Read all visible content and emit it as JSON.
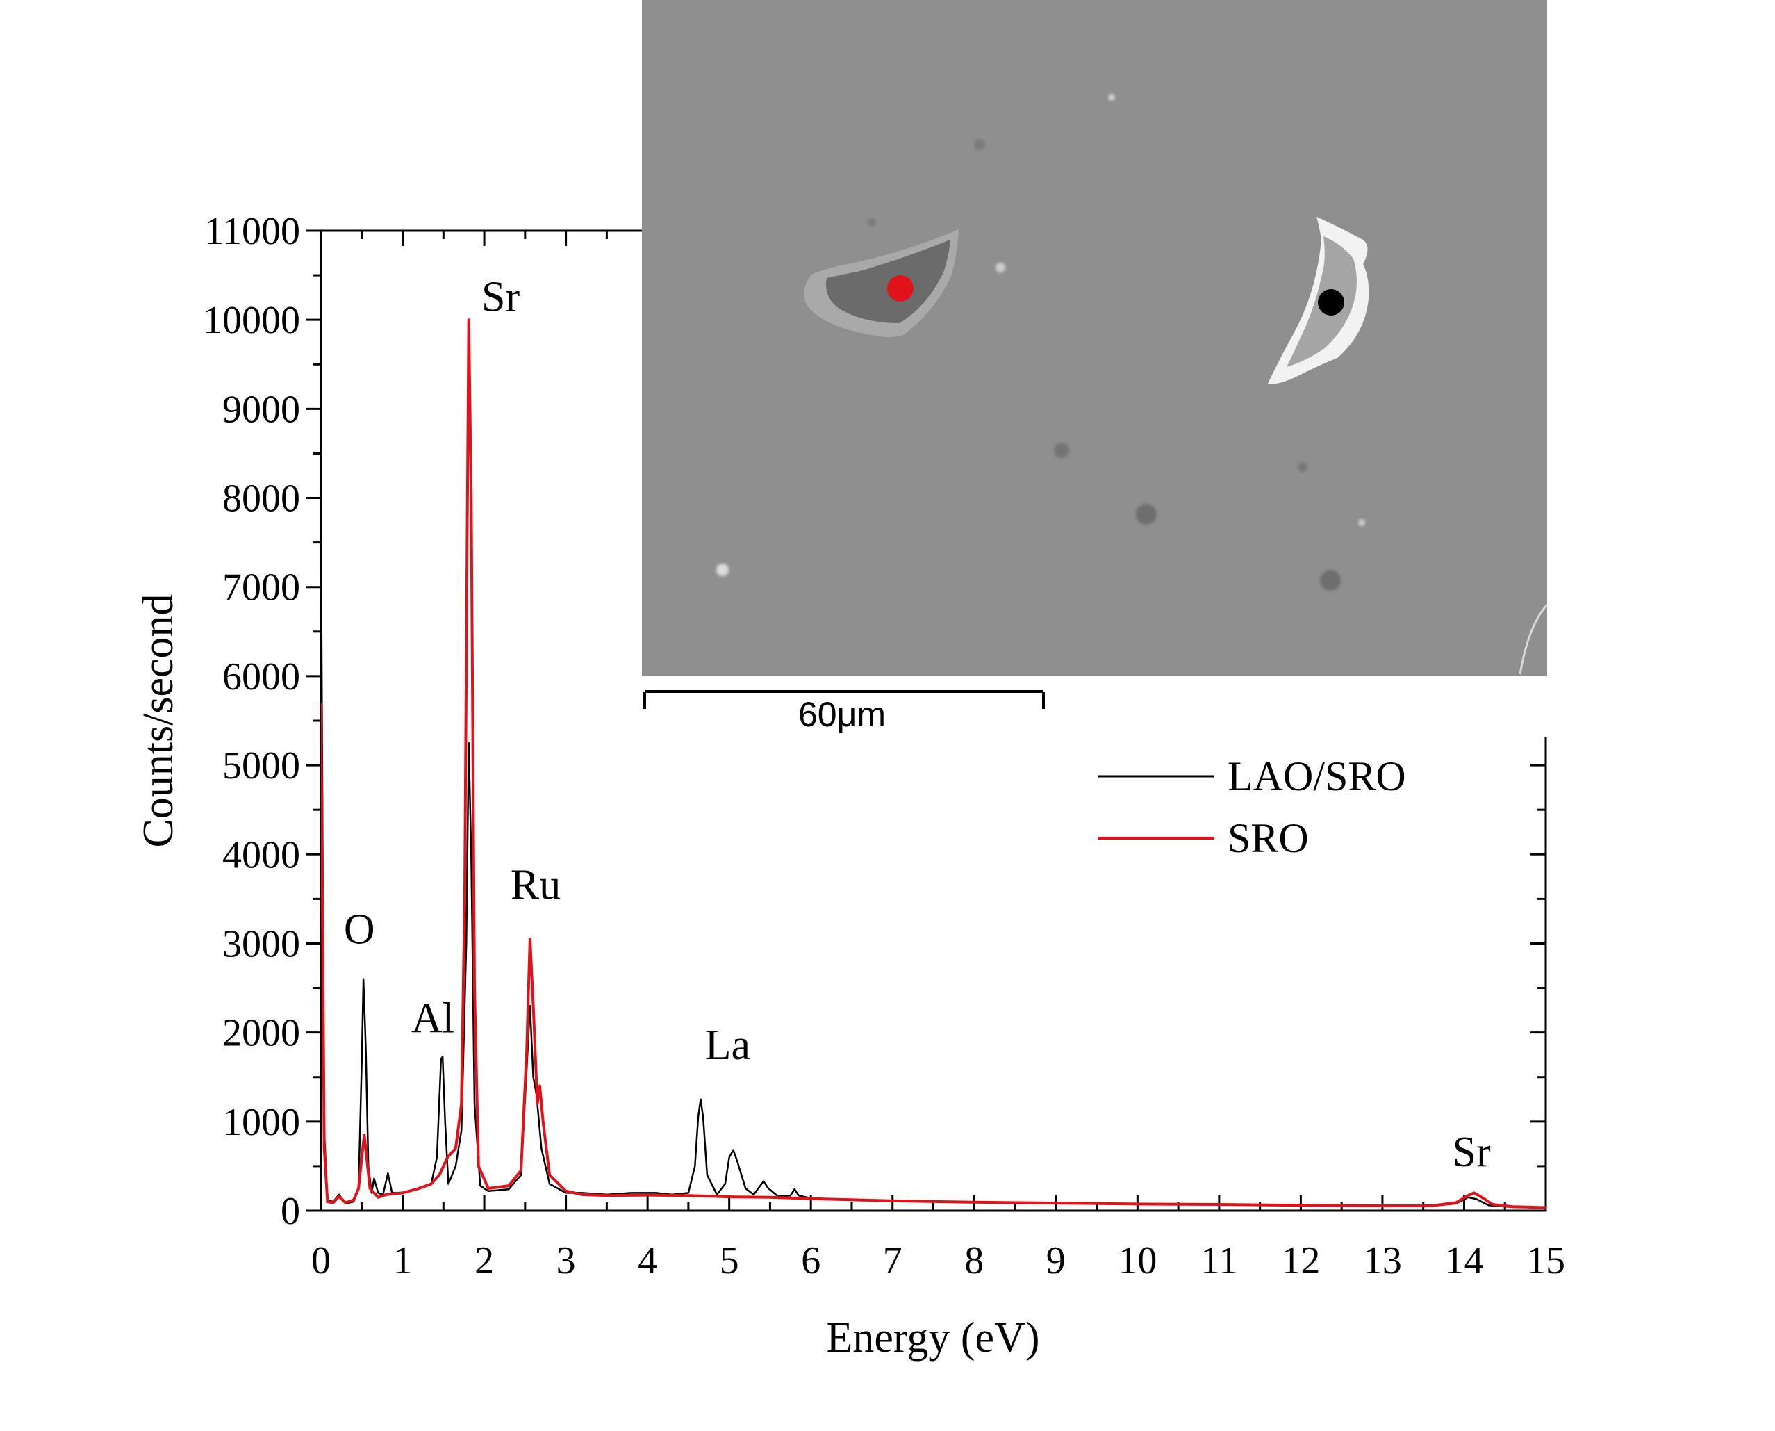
{
  "chart_data": {
    "type": "line",
    "xlabel": "Energy (eV)",
    "ylabel": "Counts/second",
    "xlim": [
      0,
      15
    ],
    "ylim": [
      0,
      11000
    ],
    "x_ticks": [
      "0",
      "1",
      "2",
      "3",
      "4",
      "5",
      "6",
      "7",
      "8",
      "9",
      "10",
      "11",
      "12",
      "13",
      "14",
      "15"
    ],
    "y_ticks": [
      "0",
      "1000",
      "2000",
      "3000",
      "4000",
      "5000",
      "6000",
      "7000",
      "8000",
      "9000",
      "10000",
      "11000"
    ],
    "legend_position": "right",
    "series": [
      {
        "name": "LAO/SRO",
        "color": "#000000",
        "points": [
          [
            0,
            7600
          ],
          [
            0.04,
            900
          ],
          [
            0.08,
            120
          ],
          [
            0.15,
            100
          ],
          [
            0.22,
            180
          ],
          [
            0.3,
            80
          ],
          [
            0.4,
            100
          ],
          [
            0.46,
            250
          ],
          [
            0.5,
            1700
          ],
          [
            0.52,
            2600
          ],
          [
            0.55,
            1800
          ],
          [
            0.58,
            500
          ],
          [
            0.62,
            200
          ],
          [
            0.65,
            360
          ],
          [
            0.7,
            200
          ],
          [
            0.76,
            180
          ],
          [
            0.82,
            420
          ],
          [
            0.87,
            200
          ],
          [
            1.0,
            200
          ],
          [
            1.2,
            250
          ],
          [
            1.35,
            300
          ],
          [
            1.42,
            600
          ],
          [
            1.47,
            1700
          ],
          [
            1.49,
            1730
          ],
          [
            1.52,
            1000
          ],
          [
            1.56,
            300
          ],
          [
            1.65,
            500
          ],
          [
            1.72,
            900
          ],
          [
            1.78,
            3000
          ],
          [
            1.81,
            5250
          ],
          [
            1.84,
            4000
          ],
          [
            1.88,
            1200
          ],
          [
            1.95,
            280
          ],
          [
            2.05,
            220
          ],
          [
            2.3,
            240
          ],
          [
            2.45,
            400
          ],
          [
            2.52,
            1600
          ],
          [
            2.56,
            2300
          ],
          [
            2.6,
            1500
          ],
          [
            2.64,
            1300
          ],
          [
            2.7,
            700
          ],
          [
            2.8,
            300
          ],
          [
            3.0,
            200
          ],
          [
            3.2,
            200
          ],
          [
            3.5,
            180
          ],
          [
            3.8,
            200
          ],
          [
            4.1,
            200
          ],
          [
            4.3,
            180
          ],
          [
            4.5,
            200
          ],
          [
            4.58,
            500
          ],
          [
            4.62,
            1050
          ],
          [
            4.65,
            1250
          ],
          [
            4.68,
            1050
          ],
          [
            4.73,
            400
          ],
          [
            4.85,
            180
          ],
          [
            4.95,
            300
          ],
          [
            5.0,
            600
          ],
          [
            5.05,
            680
          ],
          [
            5.1,
            550
          ],
          [
            5.2,
            250
          ],
          [
            5.3,
            180
          ],
          [
            5.38,
            280
          ],
          [
            5.42,
            330
          ],
          [
            5.48,
            250
          ],
          [
            5.6,
            160
          ],
          [
            5.75,
            170
          ],
          [
            5.8,
            240
          ],
          [
            5.85,
            170
          ],
          [
            6.0,
            140
          ],
          [
            7,
            110
          ],
          [
            8,
            95
          ],
          [
            9,
            85
          ],
          [
            10,
            75
          ],
          [
            11,
            70
          ],
          [
            12,
            60
          ],
          [
            13,
            55
          ],
          [
            13.6,
            55
          ],
          [
            13.9,
            80
          ],
          [
            14.05,
            150
          ],
          [
            14.15,
            130
          ],
          [
            14.3,
            60
          ],
          [
            14.6,
            40
          ],
          [
            15,
            35
          ]
        ]
      },
      {
        "name": "SRO",
        "color": "#e0121a",
        "points": [
          [
            0,
            5700
          ],
          [
            0.04,
            700
          ],
          [
            0.08,
            100
          ],
          [
            0.15,
            90
          ],
          [
            0.22,
            160
          ],
          [
            0.3,
            90
          ],
          [
            0.4,
            120
          ],
          [
            0.46,
            250
          ],
          [
            0.5,
            600
          ],
          [
            0.53,
            850
          ],
          [
            0.56,
            600
          ],
          [
            0.6,
            250
          ],
          [
            0.7,
            150
          ],
          [
            0.8,
            180
          ],
          [
            1.0,
            200
          ],
          [
            1.2,
            250
          ],
          [
            1.35,
            300
          ],
          [
            1.45,
            400
          ],
          [
            1.55,
            600
          ],
          [
            1.65,
            700
          ],
          [
            1.72,
            1200
          ],
          [
            1.76,
            3500
          ],
          [
            1.79,
            7500
          ],
          [
            1.81,
            10000
          ],
          [
            1.84,
            8000
          ],
          [
            1.88,
            2500
          ],
          [
            1.93,
            500
          ],
          [
            2.05,
            250
          ],
          [
            2.3,
            280
          ],
          [
            2.45,
            450
          ],
          [
            2.52,
            1800
          ],
          [
            2.56,
            3050
          ],
          [
            2.6,
            2300
          ],
          [
            2.65,
            1200
          ],
          [
            2.68,
            1400
          ],
          [
            2.72,
            1000
          ],
          [
            2.8,
            400
          ],
          [
            3.0,
            220
          ],
          [
            3.2,
            180
          ],
          [
            3.5,
            170
          ],
          [
            4.0,
            175
          ],
          [
            4.5,
            170
          ],
          [
            5.0,
            155
          ],
          [
            5.5,
            150
          ],
          [
            6.0,
            135
          ],
          [
            7,
            110
          ],
          [
            8,
            95
          ],
          [
            9,
            85
          ],
          [
            10,
            75
          ],
          [
            11,
            70
          ],
          [
            12,
            60
          ],
          [
            13,
            55
          ],
          [
            13.6,
            55
          ],
          [
            13.9,
            90
          ],
          [
            14.05,
            170
          ],
          [
            14.12,
            200
          ],
          [
            14.2,
            160
          ],
          [
            14.35,
            70
          ],
          [
            14.6,
            45
          ],
          [
            15,
            35
          ]
        ]
      }
    ],
    "annotations": [
      {
        "text": "O",
        "x": 0.47,
        "y": 3000
      },
      {
        "text": "Al",
        "x": 1.37,
        "y": 2000
      },
      {
        "text": "Sr",
        "x": 2.2,
        "y": 10100
      },
      {
        "text": "Ru",
        "x": 2.63,
        "y": 3500
      },
      {
        "text": "La",
        "x": 4.98,
        "y": 1700
      },
      {
        "text": "Sr",
        "x": 14.09,
        "y": 500
      }
    ]
  },
  "inset": {
    "scale_bar_label": "60μm",
    "background_color": "#8f8f8f",
    "markers": [
      {
        "color": "#e0121a"
      },
      {
        "color": "#000000"
      }
    ]
  }
}
